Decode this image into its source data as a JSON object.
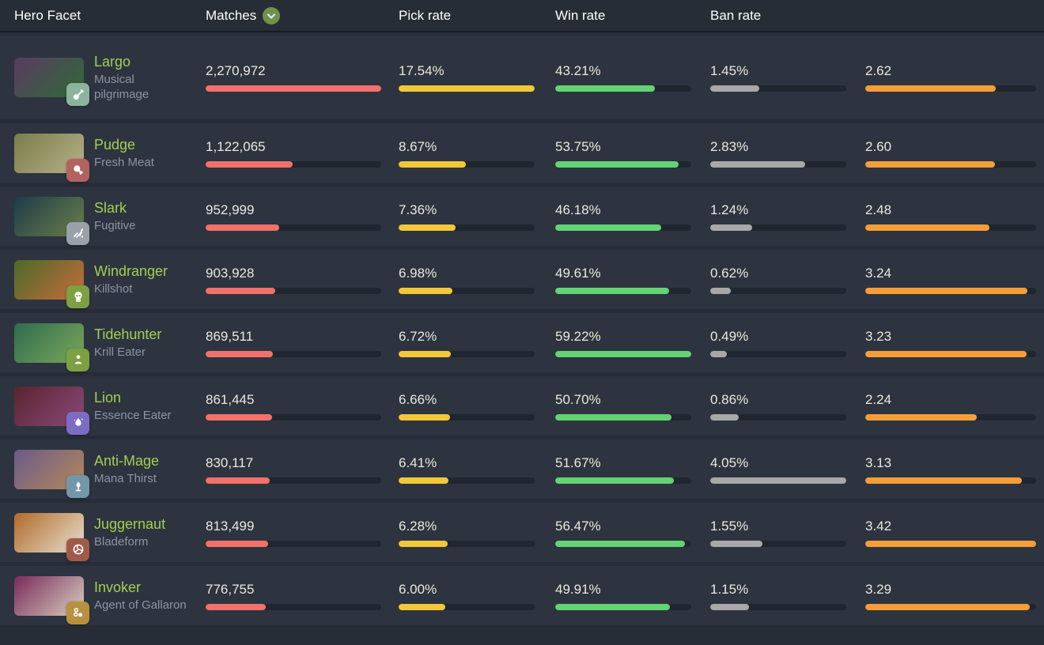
{
  "table": {
    "columns": [
      {
        "key": "hero",
        "label": "Hero Facet"
      },
      {
        "key": "matches",
        "label": "Matches",
        "sorted": true
      },
      {
        "key": "pick",
        "label": "Pick rate"
      },
      {
        "key": "win",
        "label": "Win rate"
      },
      {
        "key": "ban",
        "label": "Ban rate"
      },
      {
        "key": "extra",
        "label": ""
      }
    ],
    "sort_icon": "chevron-down-icon",
    "colors": {
      "matches_bar": "#f3716b",
      "pick_bar": "#f2c839",
      "win_bar": "#63d374",
      "ban_bar": "#a8a8a8",
      "extra_bar": "#f59e38",
      "track": "#20262f",
      "hero_link": "#a5ce51",
      "facet_text": "#8b94a3",
      "value_text": "#ece8dc",
      "header_text": "#ffffff",
      "row_bg": "#2d3440",
      "page_bg": "#262d37",
      "sort_badge": "#72914d"
    },
    "rows": [
      {
        "hero": "Largo",
        "facet": "Musical pilgrimage",
        "facet_icon": "lute-icon",
        "badge_color": "#8cb49c",
        "portrait_colors": [
          "#5a3a63",
          "#2f6b35"
        ],
        "matches": "2,270,972",
        "matches_val": 2270972,
        "pick": "17.54%",
        "pick_val": 17.54,
        "win": "43.21%",
        "win_val": 43.21,
        "ban": "1.45%",
        "ban_val": 1.45,
        "extra": "2.62",
        "extra_val": 2.62
      },
      {
        "hero": "Pudge",
        "facet": "Fresh Meat",
        "facet_icon": "meat-icon",
        "badge_color": "#b26360",
        "portrait_colors": [
          "#7a7d4a",
          "#b8b08a"
        ],
        "matches": "1,122,065",
        "matches_val": 1122065,
        "pick": "8.67%",
        "pick_val": 8.67,
        "win": "53.75%",
        "win_val": 53.75,
        "ban": "2.83%",
        "ban_val": 2.83,
        "extra": "2.60",
        "extra_val": 2.6
      },
      {
        "hero": "Slark",
        "facet": "Fugitive",
        "facet_icon": "escape-icon",
        "badge_color": "#9aa1a8",
        "portrait_colors": [
          "#1e3b4a",
          "#6a7f4a"
        ],
        "matches": "952,999",
        "matches_val": 952999,
        "pick": "7.36%",
        "pick_val": 7.36,
        "win": "46.18%",
        "win_val": 46.18,
        "ban": "1.24%",
        "ban_val": 1.24,
        "extra": "2.48",
        "extra_val": 2.48
      },
      {
        "hero": "Windranger",
        "facet": "Killshot",
        "facet_icon": "skull-icon",
        "badge_color": "#7da043",
        "portrait_colors": [
          "#4a6b2a",
          "#c96b3a"
        ],
        "matches": "903,928",
        "matches_val": 903928,
        "pick": "6.98%",
        "pick_val": 6.98,
        "win": "49.61%",
        "win_val": 49.61,
        "ban": "0.62%",
        "ban_val": 0.62,
        "extra": "3.24",
        "extra_val": 3.24
      },
      {
        "hero": "Tidehunter",
        "facet": "Krill Eater",
        "facet_icon": "person-icon",
        "badge_color": "#7da043",
        "portrait_colors": [
          "#2f6b4f",
          "#7aa85a"
        ],
        "matches": "869,511",
        "matches_val": 869511,
        "pick": "6.72%",
        "pick_val": 6.72,
        "win": "59.22%",
        "win_val": 59.22,
        "ban": "0.49%",
        "ban_val": 0.49,
        "extra": "3.23",
        "extra_val": 3.23
      },
      {
        "hero": "Lion",
        "facet": "Essence Eater",
        "facet_icon": "flame-icon",
        "badge_color": "#7e6cc3",
        "portrait_colors": [
          "#5a2430",
          "#8a4a7a"
        ],
        "matches": "861,445",
        "matches_val": 861445,
        "pick": "6.66%",
        "pick_val": 6.66,
        "win": "50.70%",
        "win_val": 50.7,
        "ban": "0.86%",
        "ban_val": 0.86,
        "extra": "2.24",
        "extra_val": 2.24
      },
      {
        "hero": "Anti-Mage",
        "facet": "Mana Thirst",
        "facet_icon": "fountain-icon",
        "badge_color": "#7396a8",
        "portrait_colors": [
          "#6a5a8a",
          "#b5895a"
        ],
        "matches": "830,117",
        "matches_val": 830117,
        "pick": "6.41%",
        "pick_val": 6.41,
        "win": "51.67%",
        "win_val": 51.67,
        "ban": "4.05%",
        "ban_val": 4.05,
        "extra": "3.13",
        "extra_val": 3.13
      },
      {
        "hero": "Juggernaut",
        "facet": "Bladeform",
        "facet_icon": "mask-icon",
        "badge_color": "#a05a4b",
        "portrait_colors": [
          "#b06a2a",
          "#e8e0d0"
        ],
        "matches": "813,499",
        "matches_val": 813499,
        "pick": "6.28%",
        "pick_val": 6.28,
        "win": "56.47%",
        "win_val": 56.47,
        "ban": "1.55%",
        "ban_val": 1.55,
        "extra": "3.42",
        "extra_val": 3.42
      },
      {
        "hero": "Invoker",
        "facet": "Agent of Gallaron",
        "facet_icon": "orbs-icon",
        "badge_color": "#b8913f",
        "portrait_colors": [
          "#7a2a5a",
          "#d8cfc0"
        ],
        "matches": "776,755",
        "matches_val": 776755,
        "pick": "6.00%",
        "pick_val": 6.0,
        "win": "49.91%",
        "win_val": 49.91,
        "ban": "1.15%",
        "ban_val": 1.15,
        "extra": "3.29",
        "extra_val": 3.29
      }
    ]
  }
}
